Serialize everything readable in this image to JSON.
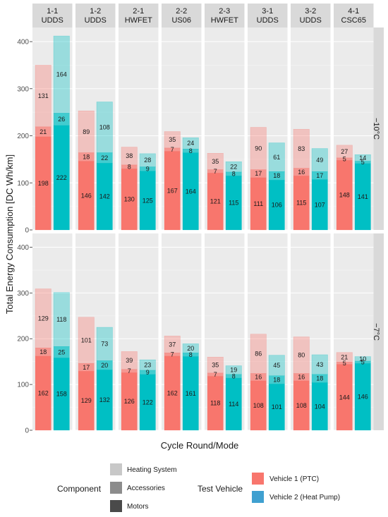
{
  "chart_data": {
    "type": "bar",
    "stacked": true,
    "xlabel": "Cycle Round/Mode",
    "ylabel": "Total Energy Consumption [DC Wh/km]",
    "ylim": [
      0,
      430
    ],
    "yticks": [
      0,
      100,
      200,
      300,
      400
    ],
    "grid": true,
    "legend_position": "bottom",
    "categories": [
      "1-1\nUDDS",
      "1-2\nUDDS",
      "2-1\nHWFET",
      "2-2\nUS06",
      "2-3\nHWFET",
      "3-1\nUDDS",
      "3-2\nUDDS",
      "4-1\nCSC65"
    ],
    "facets": [
      {
        "label": "−10°C",
        "vehicle1": {
          "motors": [
            198,
            146,
            130,
            167,
            121,
            111,
            115,
            148
          ],
          "accessories": [
            21,
            18,
            8,
            7,
            7,
            17,
            16,
            5
          ],
          "heating": [
            131,
            89,
            38,
            35,
            35,
            90,
            83,
            27
          ]
        },
        "vehicle2": {
          "motors": [
            222,
            142,
            125,
            164,
            115,
            106,
            107,
            141
          ],
          "accessories": [
            26,
            22,
            9,
            8,
            8,
            18,
            17,
            5
          ],
          "heating": [
            164,
            108,
            28,
            24,
            22,
            61,
            49,
            14
          ]
        }
      },
      {
        "label": "−7°C",
        "vehicle1": {
          "motors": [
            162,
            129,
            126,
            162,
            118,
            108,
            108,
            144
          ],
          "accessories": [
            18,
            17,
            7,
            7,
            7,
            16,
            16,
            5
          ],
          "heating": [
            129,
            101,
            39,
            37,
            35,
            86,
            80,
            21
          ]
        },
        "vehicle2": {
          "motors": [
            158,
            132,
            122,
            161,
            114,
            101,
            104,
            146
          ],
          "accessories": [
            25,
            20,
            9,
            8,
            8,
            18,
            18,
            5
          ],
          "heating": [
            118,
            73,
            23,
            20,
            19,
            45,
            43,
            10
          ]
        }
      }
    ],
    "legend": {
      "component_title": "Component",
      "component_items": [
        "Heating System",
        "Accessories",
        "Motors"
      ],
      "vehicle_title": "Test Vehicle",
      "vehicle_items": [
        "Vehicle 1 (PTC)",
        "Vehicle 2 (Heat Pump)"
      ]
    },
    "colors": {
      "vehicle1": "#f8766d",
      "vehicle2": "#00bfc4",
      "vehicle2_legend": "#3fa0d0",
      "heating_legend": "#c8c8c8",
      "accessories_legend": "#8c8c8c",
      "motors_legend": "#4a4a4a"
    }
  }
}
